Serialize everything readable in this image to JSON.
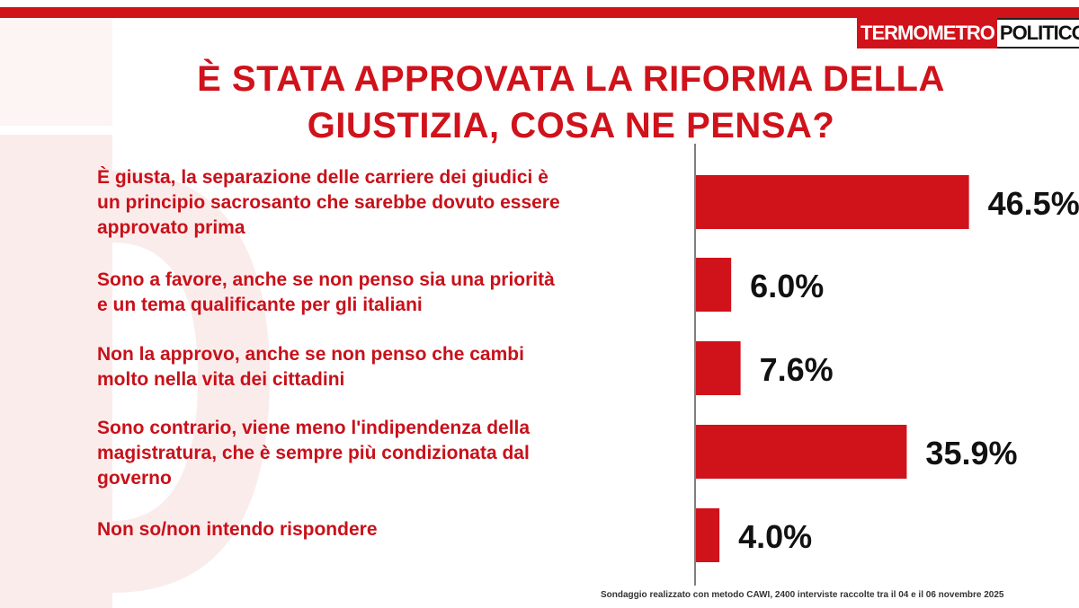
{
  "header": {
    "logo_left": "TERMOMETRO",
    "logo_right": "POLITICO",
    "title_line1": "È STATA APPROVATA LA RIFORMA DELLA",
    "title_line2": "GIUSTIZIA, COSA NE PENSA?"
  },
  "colors": {
    "accent": "#d0121b",
    "label": "#c8111a",
    "value_text": "#111111"
  },
  "chart_data": {
    "type": "bar",
    "orientation": "horizontal",
    "title": "È STATA APPROVATA LA RIFORMA DELLA GIUSTIZIA, COSA NE PENSA?",
    "categories": [
      "È giusta, la separazione delle carriere dei giudici è un principio sacrosanto che sarebbe dovuto essere approvato prima",
      "Sono a favore, anche se non penso sia una priorità e un tema qualificante per gli italiani",
      "Non la approvo, anche se non penso che cambi molto nella vita dei cittadini",
      "Sono contrario, viene meno l'indipendenza della magistratura, che è sempre più condizionata dal governo",
      "Non so/non intendo rispondere"
    ],
    "values": [
      46.5,
      6.0,
      7.6,
      35.9,
      4.0
    ],
    "value_labels": [
      "46.5%",
      "6.0%",
      "7.6%",
      "35.9%",
      "4.0%"
    ],
    "unit": "%",
    "grid": false,
    "legend": "none"
  },
  "rows": [
    {
      "lines": [
        "È giusta, la separazione delle carriere dei giudici è",
        "un principio sacrosanto che sarebbe dovuto essere",
        "approvato prima"
      ]
    },
    {
      "lines": [
        "Sono a favore, anche se non penso sia una priorità",
        "e un tema qualificante per gli italiani"
      ]
    },
    {
      "lines": [
        "Non la approvo, anche se non penso che cambi",
        "molto nella vita dei cittadini"
      ]
    },
    {
      "lines": [
        "Sono contrario, viene meno l'indipendenza della",
        "magistratura, che è sempre più condizionata dal",
        "governo"
      ]
    },
    {
      "lines": [
        "Non so/non intendo rispondere"
      ]
    }
  ],
  "footer": {
    "note": "Sondaggio realizzato con metodo CAWI, 2400 interviste raccolte tra il 04 e il 06 novembre  2025"
  }
}
